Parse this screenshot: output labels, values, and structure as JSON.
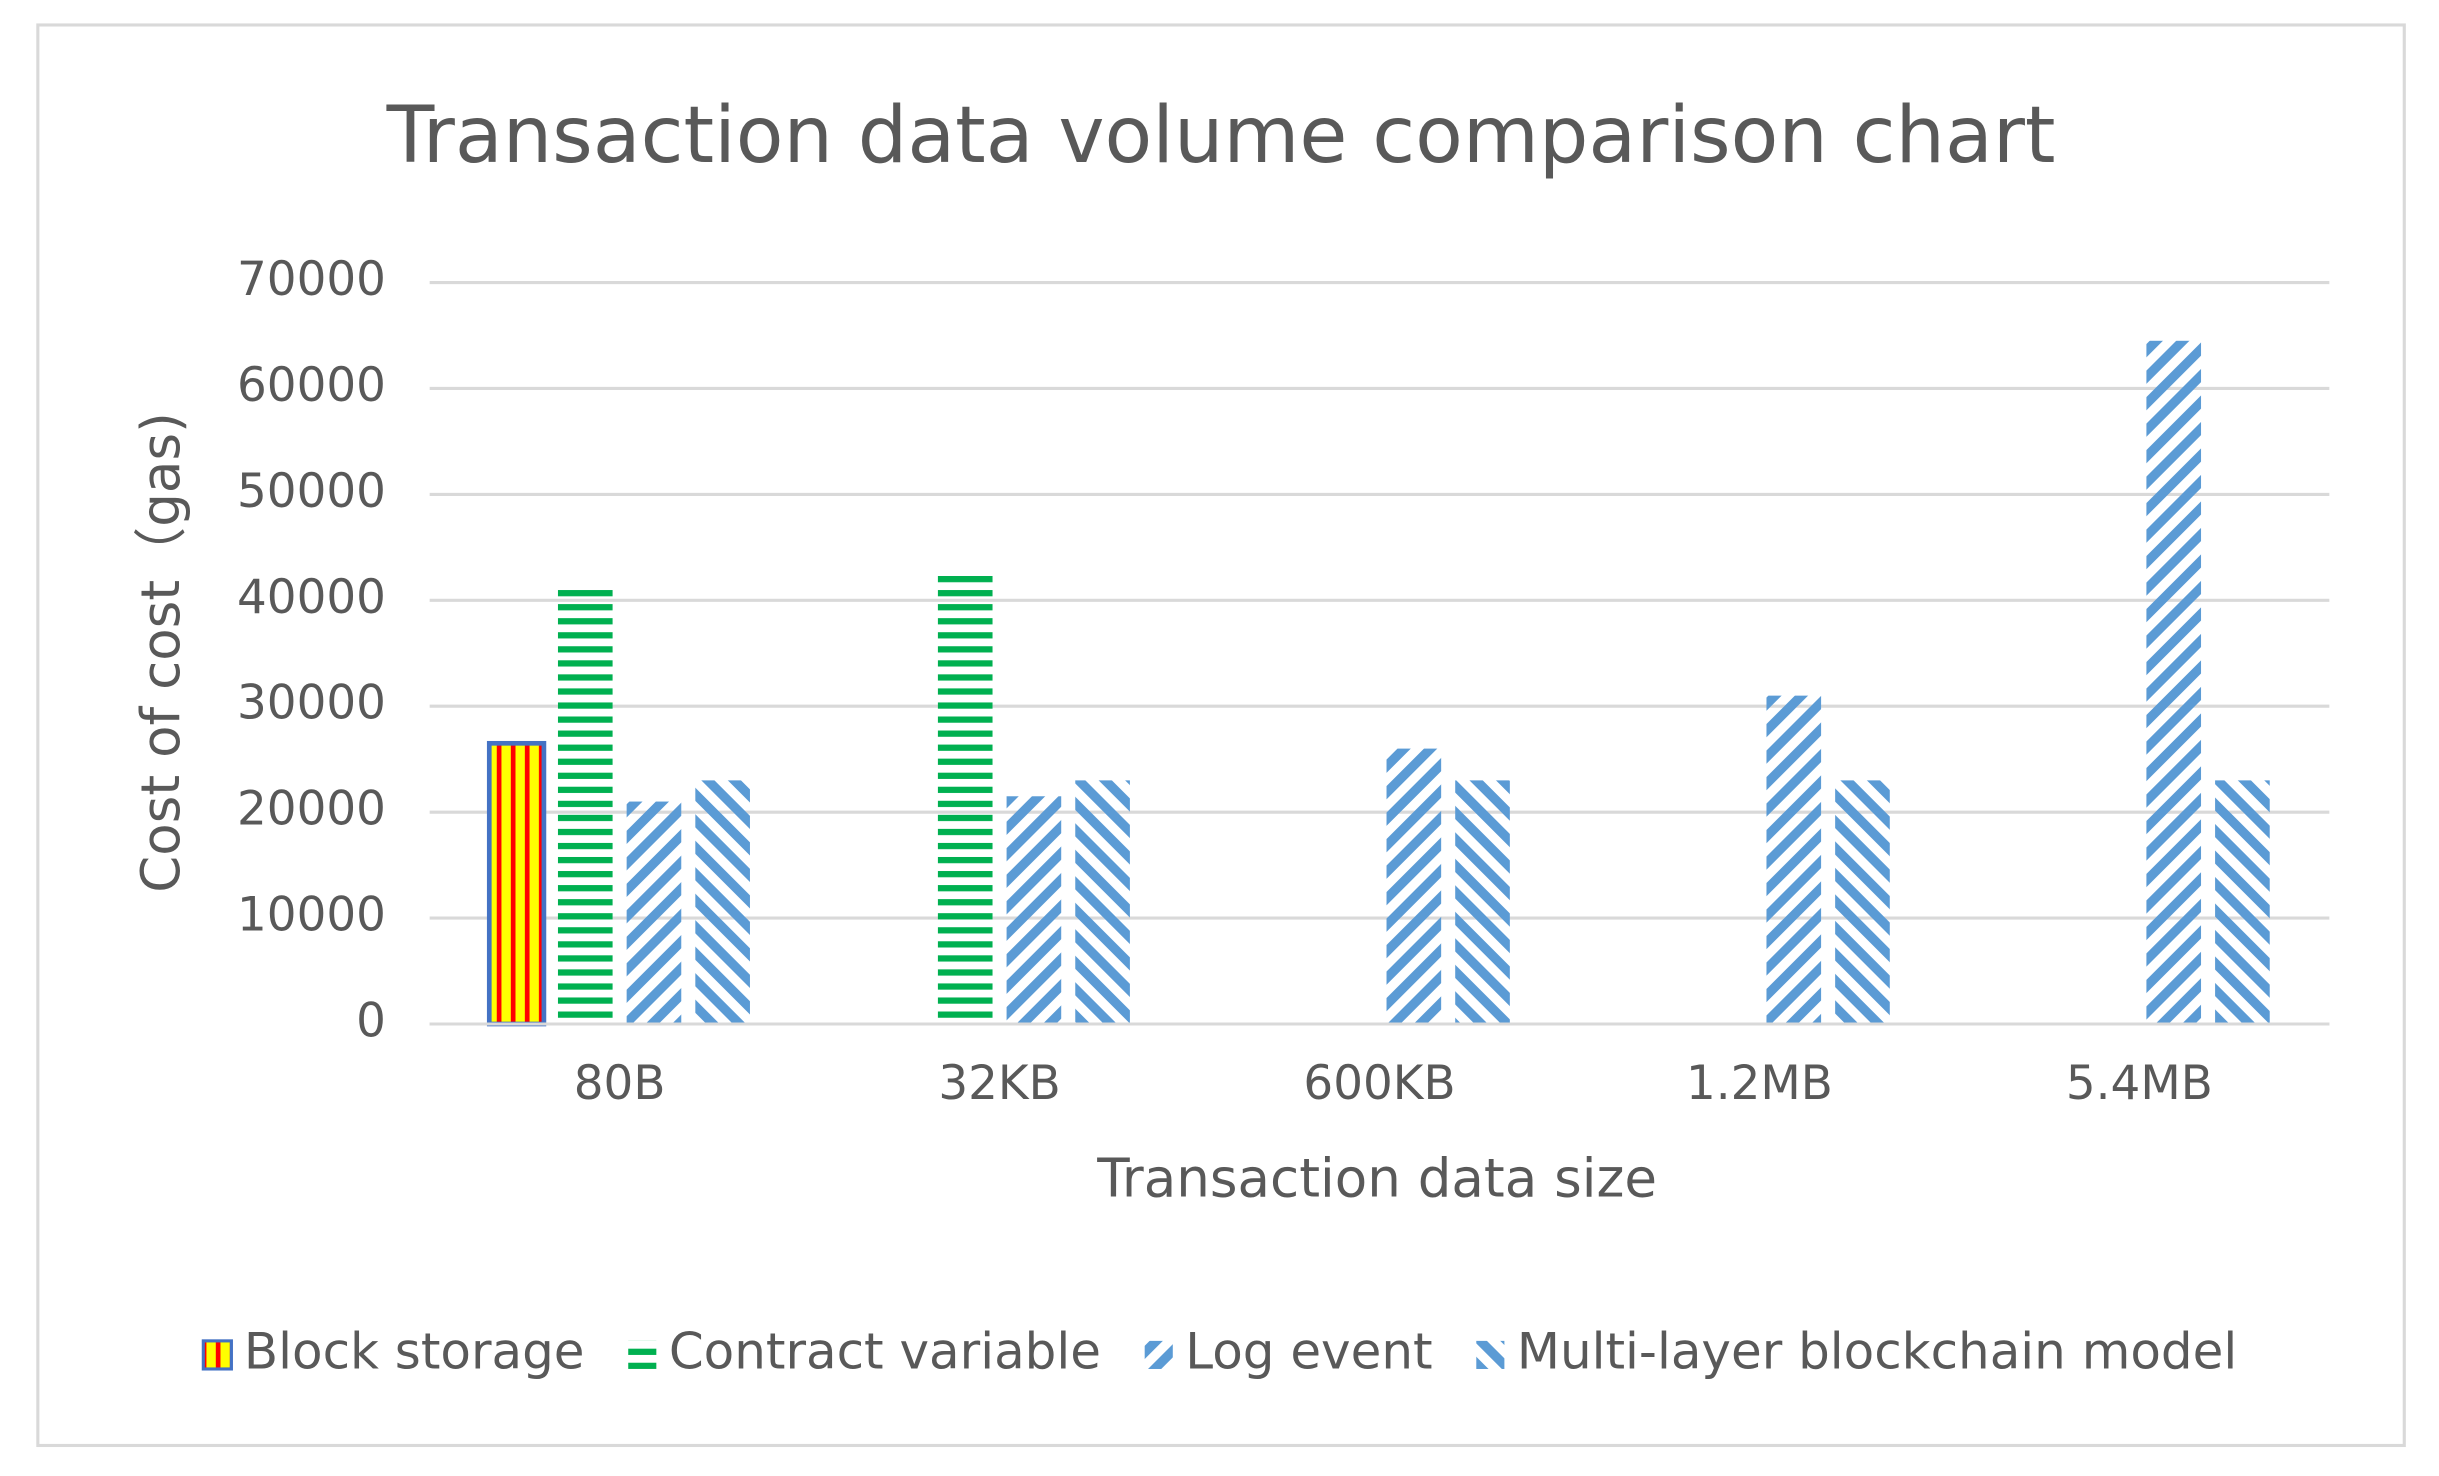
{
  "chart_data": {
    "type": "bar",
    "title": "Transaction data volume comparison chart",
    "x_label": "Transaction data size",
    "y_label": "Cost of cost（gas)",
    "categories": [
      "80B",
      "32KB",
      "600KB",
      "1.2MB",
      "5.4MB"
    ],
    "series": [
      {
        "name": "Block storage",
        "color": "#ffff00",
        "values": [
          26500,
          null,
          null,
          null,
          null
        ]
      },
      {
        "name": "Contract variable",
        "color": "#00b050",
        "values": [
          41000,
          42800,
          null,
          null,
          null
        ]
      },
      {
        "name": "Log event",
        "color": "#5b9bd5",
        "values": [
          21000,
          21500,
          26000,
          31000,
          64500
        ]
      },
      {
        "name": "Multi-layer blockchain model",
        "color": "#5b9bd5",
        "values": [
          23000,
          23000,
          23000,
          23000,
          23000
        ]
      }
    ],
    "ylim": [
      0,
      70000
    ],
    "yticks": [
      0,
      10000,
      20000,
      30000,
      40000,
      50000,
      60000,
      70000
    ],
    "grid": true,
    "legend": "bottom"
  }
}
